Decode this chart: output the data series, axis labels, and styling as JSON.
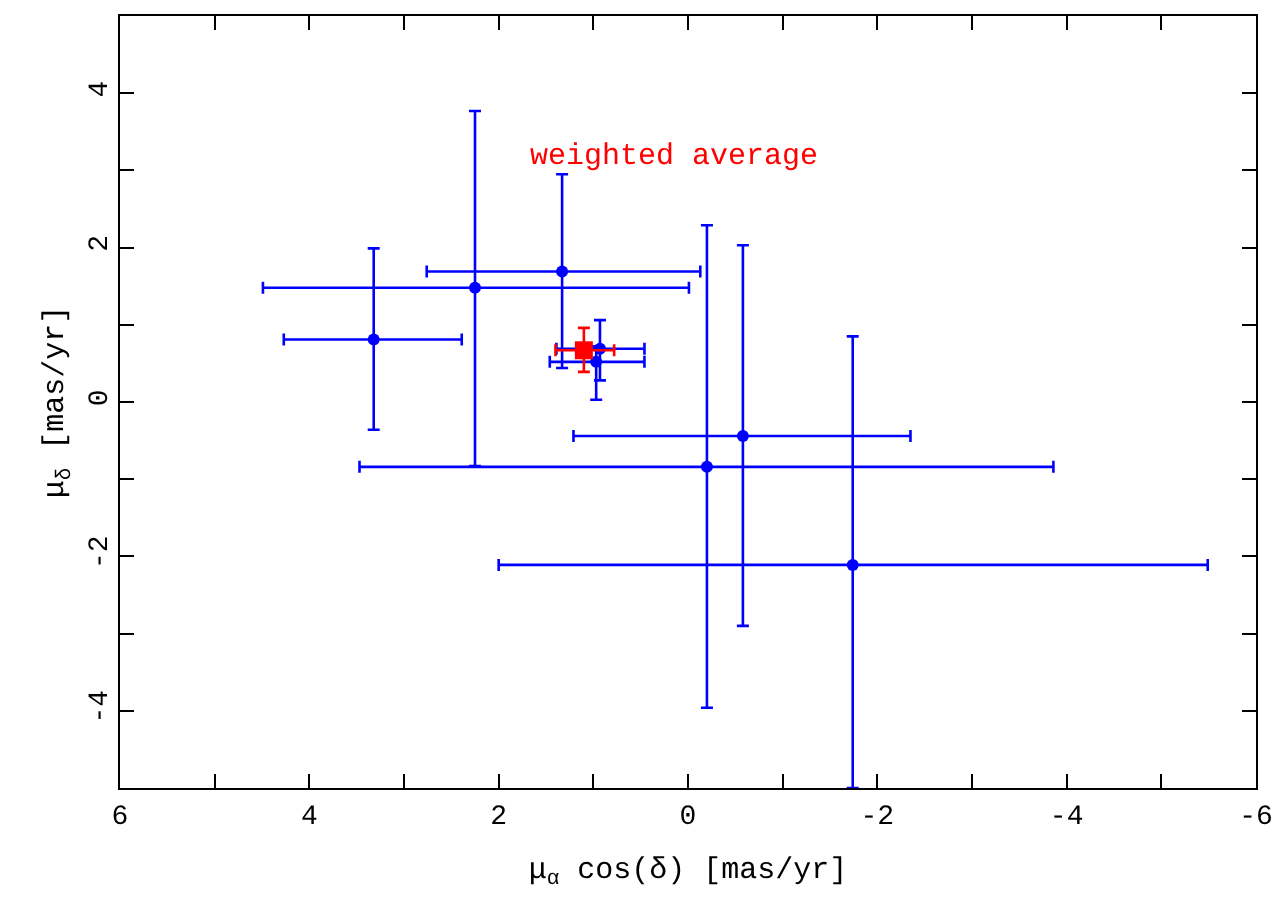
{
  "chart_data": {
    "type": "scatter",
    "xlabel": "μ$_{α}$ cos(δ) [mas/yr]",
    "ylabel": "μ$_{δ}$ [mas/yr]",
    "xlim": [
      6,
      -6
    ],
    "ylim": [
      -5,
      5
    ],
    "xticks": [
      6,
      {
        "value": 5,
        "label": null
      },
      4,
      {
        "value": 3,
        "label": null
      },
      2,
      {
        "value": 1,
        "label": null
      },
      0,
      {
        "value": -1,
        "label": null
      },
      -2,
      {
        "value": -3,
        "label": null
      },
      -4,
      {
        "value": -5,
        "label": null
      },
      -6
    ],
    "yticks": [
      {
        "value": -5,
        "label": null
      },
      -4,
      {
        "value": -3,
        "label": null
      },
      -2,
      {
        "value": -1,
        "label": null
      },
      0,
      {
        "value": 1,
        "label": null
      },
      2,
      {
        "value": 3,
        "label": null
      },
      4,
      {
        "value": 5,
        "label": null
      }
    ],
    "series": [
      {
        "color": "#0000ff",
        "marker": "circle",
        "x": [
          3.32,
          2.25,
          1.33,
          0.93,
          0.97,
          -0.2,
          -0.58,
          -1.74
        ],
        "values": [
          0.81,
          1.48,
          1.69,
          0.69,
          0.52,
          -0.84,
          -0.44,
          -2.11
        ],
        "xerrors": [
          [
            2.39,
            4.27
          ],
          [
            -0.01,
            4.49
          ],
          [
            -0.13,
            2.76
          ],
          [
            0.46,
            1.39
          ],
          [
            0.46,
            1.46
          ],
          [
            -3.86,
            3.47
          ],
          [
            -2.35,
            1.21
          ],
          [
            -5.49,
            2.0
          ]
        ],
        "errors": [
          [
            -0.36,
            1.99
          ],
          [
            -0.83,
            3.77
          ],
          [
            0.44,
            2.95
          ],
          [
            0.28,
            1.06
          ],
          [
            0.03,
            0.72
          ],
          [
            -3.96,
            2.29
          ],
          [
            -2.9,
            2.03
          ],
          [
            -5,
            0.85
          ]
        ]
      },
      {
        "color": "#ff0000",
        "marker": "square",
        "x": [
          1.1
        ],
        "values": [
          0.67
        ],
        "xerrors": [
          [
            0.78,
            1.4
          ]
        ],
        "errors": [
          [
            0.39,
            0.96
          ]
        ]
      }
    ],
    "annotations": [
      "weighted average"
    ]
  }
}
